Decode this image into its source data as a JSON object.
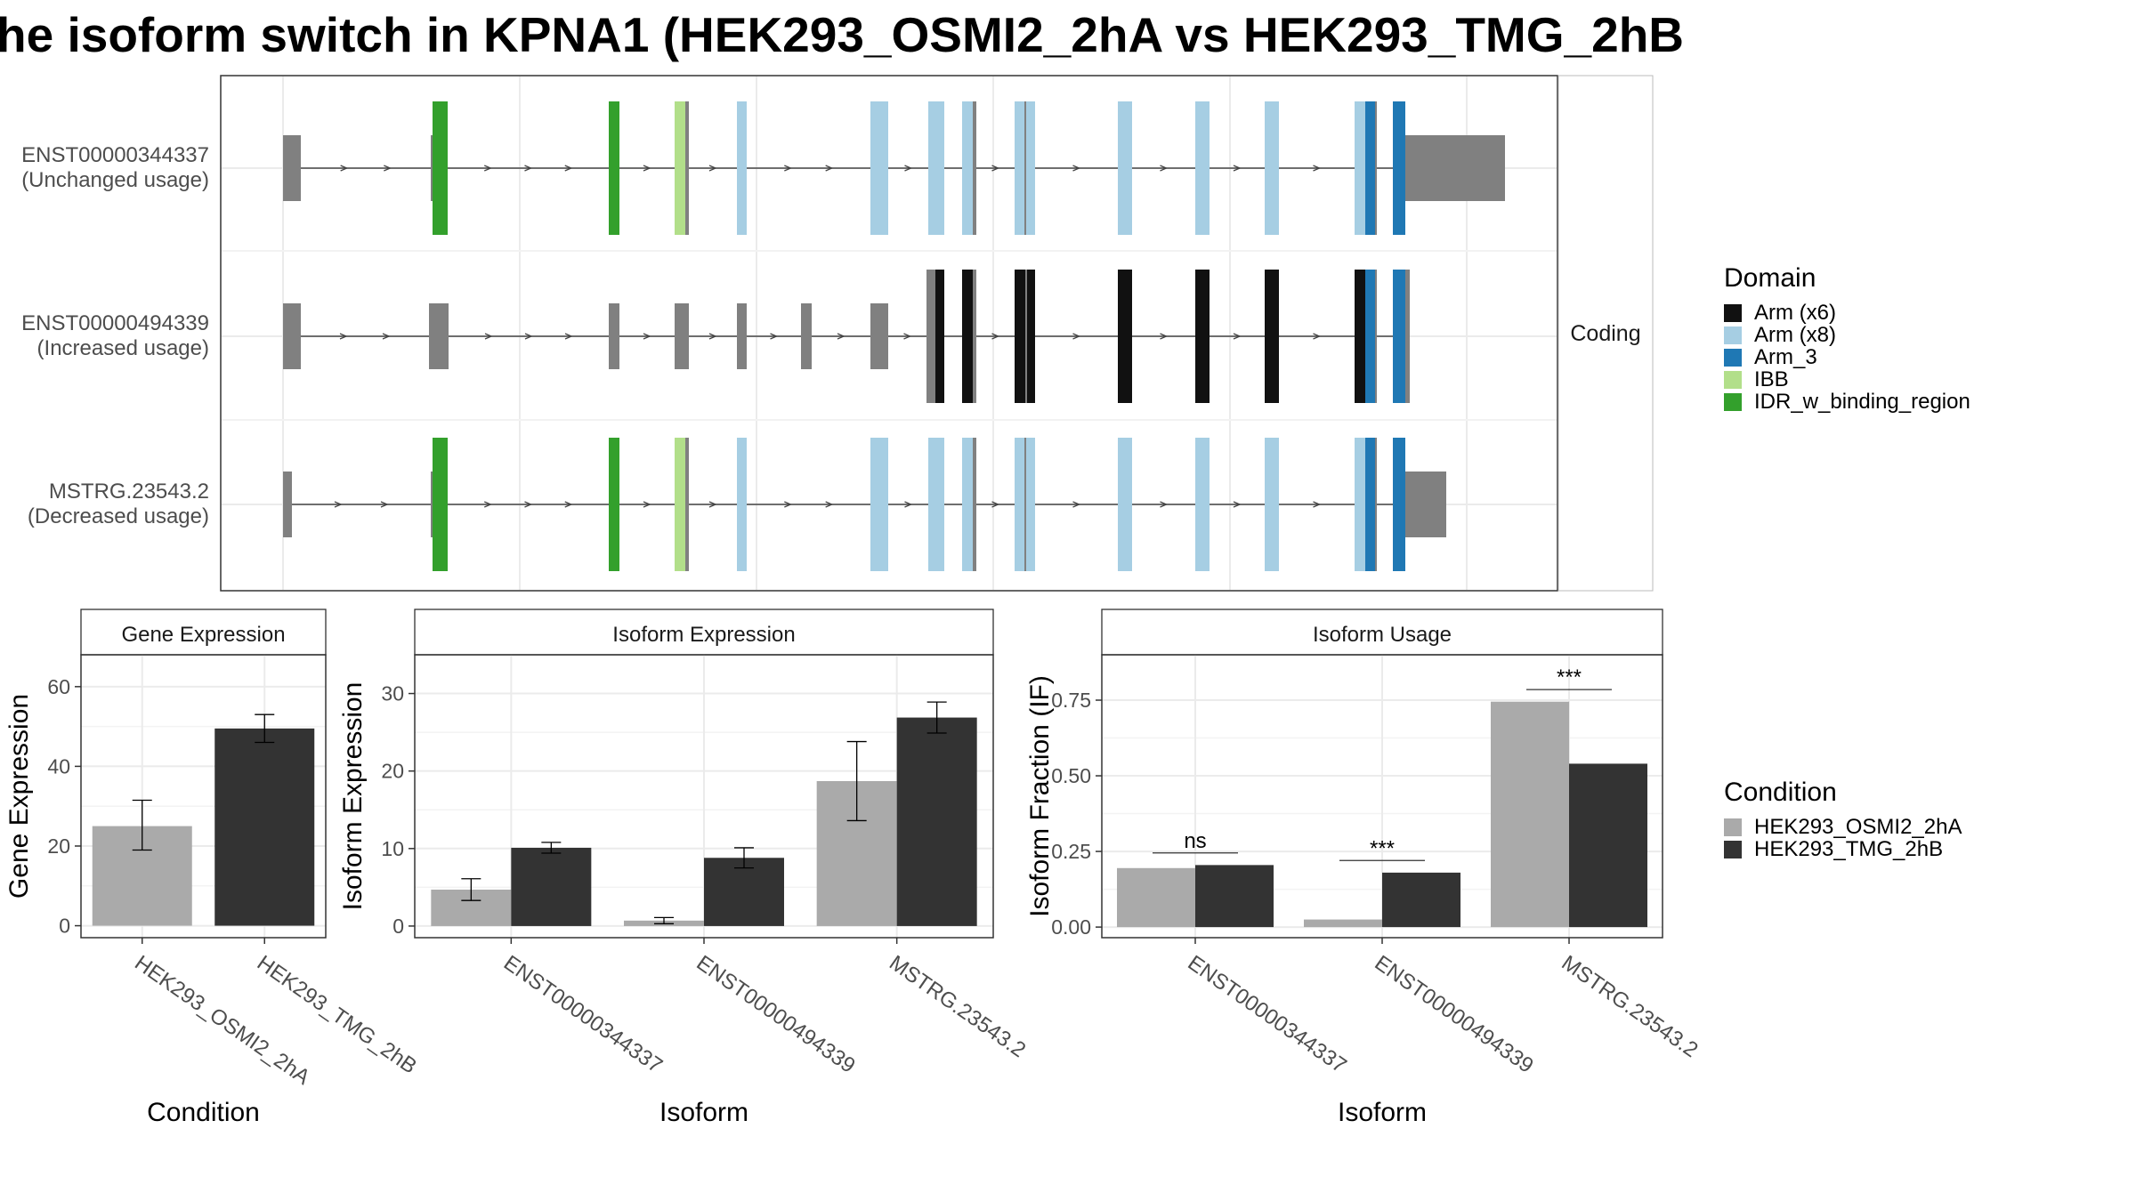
{
  "title": "he isoform switch in KPNA1 (HEK293_OSMI2_2hA vs HEK293_TMG_2hB",
  "colors": {
    "cond_a": "#aaaaaa",
    "cond_b": "#333333",
    "exon_plain": "#808080",
    "intron": "#444444",
    "grid": "#ebebeb",
    "panel_border": "#333333",
    "strip_fill": "#ffffff"
  },
  "legends": {
    "domain": {
      "title": "Domain",
      "items": [
        {
          "label": "Arm (x6)",
          "color": "#111111"
        },
        {
          "label": "Arm (x8)",
          "color": "#a6cee3"
        },
        {
          "label": "Arm_3",
          "color": "#1f78b4"
        },
        {
          "label": "IBB",
          "color": "#b2df8a"
        },
        {
          "label": "IDR_w_binding_region",
          "color": "#33a02c"
        }
      ]
    },
    "condition": {
      "title": "Condition",
      "items": [
        {
          "label": "HEK293_OSMI2_2hA",
          "color": "#aaaaaa"
        },
        {
          "label": "HEK293_TMG_2hB",
          "color": "#333333"
        }
      ]
    }
  },
  "chart_data": [
    {
      "type": "gene_structure",
      "facet_label": "Coding",
      "isoforms": [
        {
          "id": "ENST00000344337",
          "usage": "(Unchanged usage)"
        },
        {
          "id": "ENST00000494339",
          "usage": "(Increased usage)"
        },
        {
          "id": "MSTRG.23543.2",
          "usage": "(Decreased usage)"
        }
      ],
      "domains": [
        "IDR_w_binding_region",
        "IBB",
        "Arm (x8)",
        "Arm (x6)",
        "Arm_3"
      ]
    },
    {
      "type": "bar",
      "title": "Gene Expression",
      "xlabel": "Condition",
      "ylabel": "Gene Expression",
      "categories": [
        "HEK293_OSMI2_2hA",
        "HEK293_TMG_2hB"
      ],
      "values": [
        25,
        49.5
      ],
      "error_low": [
        19,
        46
      ],
      "error_high": [
        31.5,
        53
      ],
      "ylim": [
        -3,
        68
      ],
      "yticks": [
        0,
        20,
        40,
        60
      ],
      "ytick_labels": [
        "0",
        "20",
        "40",
        "60"
      ]
    },
    {
      "type": "bar",
      "title": "Isoform Expression",
      "xlabel": "Isoform",
      "ylabel": "Isoform Expression",
      "categories": [
        "ENST00000344337",
        "ENST00000494339",
        "MSTRG.23543.2"
      ],
      "series": [
        {
          "name": "HEK293_OSMI2_2hA",
          "values": [
            4.7,
            0.7,
            18.7
          ],
          "error_low": [
            3.3,
            0.3,
            13.6
          ],
          "error_high": [
            6.1,
            1.1,
            23.8
          ]
        },
        {
          "name": "HEK293_TMG_2hB",
          "values": [
            10.1,
            8.8,
            26.9
          ],
          "error_low": [
            9.4,
            7.5,
            24.9
          ],
          "error_high": [
            10.8,
            10.1,
            28.9
          ]
        }
      ],
      "ylim": [
        -1.5,
        35
      ],
      "yticks": [
        0,
        10,
        20,
        30
      ],
      "ytick_labels": [
        "0",
        "10",
        "20",
        "30"
      ]
    },
    {
      "type": "bar",
      "title": "Isoform Usage",
      "xlabel": "Isoform",
      "ylabel": "Isoform Fraction (IF)",
      "categories": [
        "ENST00000344337",
        "ENST00000494339",
        "MSTRG.23543.2"
      ],
      "series": [
        {
          "name": "HEK293_OSMI2_2hA",
          "values": [
            0.195,
            0.025,
            0.745
          ]
        },
        {
          "name": "HEK293_TMG_2hB",
          "values": [
            0.205,
            0.18,
            0.54
          ]
        }
      ],
      "significance": [
        {
          "label": "ns",
          "y": 0.245
        },
        {
          "label": "***",
          "y": 0.22
        },
        {
          "label": "***",
          "y": 0.785
        }
      ],
      "ylim": [
        -0.035,
        0.9
      ],
      "yticks": [
        0,
        0.25,
        0.5,
        0.75
      ],
      "ytick_labels": [
        "0.00",
        "0.25",
        "0.50",
        "0.75"
      ]
    }
  ]
}
